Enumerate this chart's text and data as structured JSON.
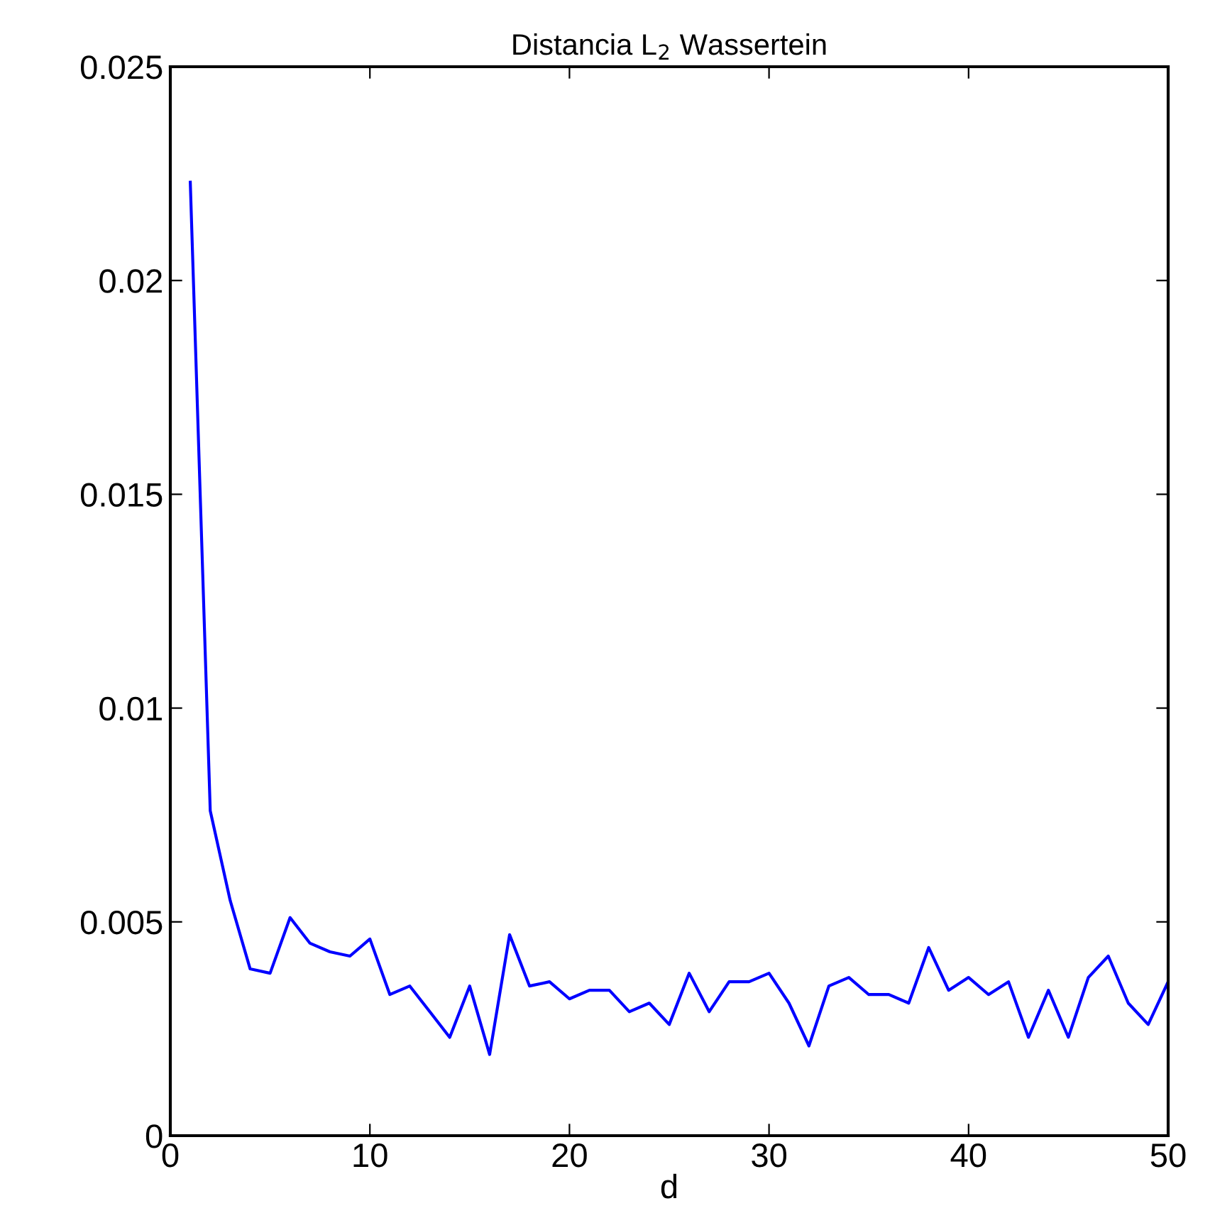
{
  "chart_data": {
    "type": "line",
    "title": "Distancia L$_{2}$ Wassertein",
    "xlabel": "d",
    "x": [
      1,
      2,
      3,
      4,
      5,
      6,
      7,
      8,
      9,
      10,
      11,
      12,
      13,
      14,
      15,
      16,
      17,
      18,
      19,
      20,
      21,
      22,
      23,
      24,
      25,
      26,
      27,
      28,
      29,
      30,
      31,
      32,
      33,
      34,
      35,
      36,
      37,
      38,
      39,
      40,
      41,
      42,
      43,
      44,
      45,
      46,
      47,
      48,
      49,
      50
    ],
    "series": [
      {
        "color": "#0000ff",
        "values": [
          0.0223,
          0.0076,
          0.0055,
          0.0039,
          0.0038,
          0.0051,
          0.0045,
          0.0043,
          0.0042,
          0.0046,
          0.0033,
          0.0035,
          0.0029,
          0.0023,
          0.0035,
          0.0019,
          0.0047,
          0.0035,
          0.0036,
          0.0032,
          0.0034,
          0.0034,
          0.0029,
          0.0031,
          0.0026,
          0.0038,
          0.0029,
          0.0036,
          0.0036,
          0.0038,
          0.0031,
          0.0021,
          0.0035,
          0.0037,
          0.0033,
          0.0033,
          0.0031,
          0.0044,
          0.0034,
          0.0037,
          0.0033,
          0.0036,
          0.0023,
          0.0034,
          0.0023,
          0.0037,
          0.0042,
          0.0031,
          0.0026,
          0.0036
        ]
      }
    ],
    "xlim": [
      0,
      50
    ],
    "xticks": [
      0,
      10,
      20,
      30,
      40,
      50
    ],
    "ylim": [
      0,
      0.025
    ],
    "yticks": [
      0,
      0.005,
      0.01,
      0.015,
      0.02,
      0.025
    ],
    "grid": false,
    "legend": false,
    "marker": "none",
    "line_style": "solid"
  }
}
